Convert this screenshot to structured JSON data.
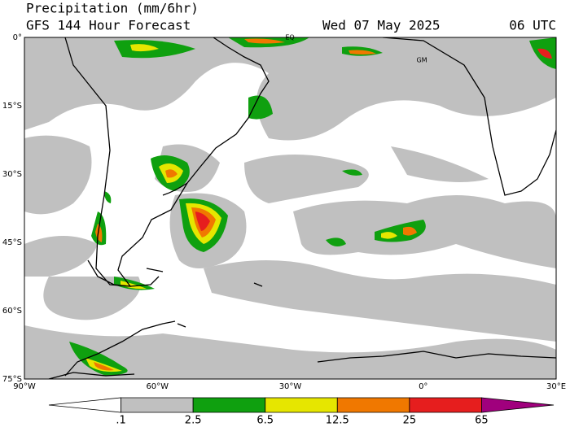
{
  "header": {
    "title": "Precipitation (mm/6hr)",
    "subtitle": "GFS 144 Hour Forecast",
    "date": "Wed 07 May 2025",
    "time": "06 UTC"
  },
  "map": {
    "latitude_labels": [
      "0°",
      "15°S",
      "30°S",
      "45°S",
      "60°S",
      "75°S"
    ],
    "longitude_labels": [
      "90°W",
      "60°W",
      "30°W",
      "0°",
      "30°E"
    ],
    "place_labels": [
      "EQ",
      "GM"
    ]
  },
  "legend": {
    "labels": [
      ".1",
      "2.5",
      "6.5",
      "12.5",
      "25",
      "65"
    ],
    "colors": [
      "#ffffff",
      "#c0c0c0",
      "#0fa00f",
      "#e6e600",
      "#f07800",
      "#e61e1e",
      "#a0007d"
    ]
  }
}
